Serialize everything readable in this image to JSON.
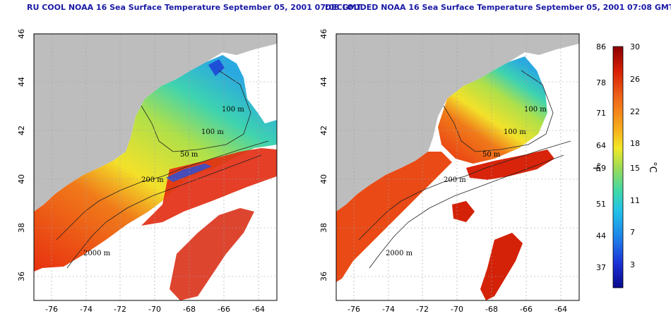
{
  "maps": [
    {
      "id": "left",
      "title": "RU COOL NOAA 16 Sea Surface Temperature September 05, 2001 07:08 GMT",
      "contour_labels": [
        "100 m",
        "100 m",
        "50 m",
        "200 m",
        "2000 m"
      ]
    },
    {
      "id": "right",
      "title": "DECLOUDED NOAA 16 Sea Surface Temperature September 05, 2001 07:08 GMT",
      "contour_labels": [
        "100 m",
        "100 m",
        "50 m",
        "200 m",
        "2000 m"
      ]
    }
  ],
  "axes": {
    "lon_ticks": [
      "-76",
      "-74",
      "-72",
      "-70",
      "-68",
      "-66",
      "-64"
    ],
    "lat_ticks": [
      "46",
      "44",
      "42",
      "40",
      "38",
      "36"
    ],
    "lon_range": [
      -77,
      -63
    ],
    "lat_range": [
      35,
      46
    ]
  },
  "colorbar": {
    "fahrenheit_label": "°F",
    "celsius_label": "°C",
    "fahrenheit_ticks": [
      "86",
      "78",
      "71",
      "64",
      "59",
      "51",
      "44",
      "37"
    ],
    "celsius_ticks": [
      "30",
      "26",
      "22",
      "18",
      "15",
      "11",
      "7",
      "3"
    ],
    "stops": [
      "#8b0000",
      "#d81e05",
      "#f06a1a",
      "#f7b21b",
      "#f2e827",
      "#9fdc55",
      "#3fd8a8",
      "#22c3e8",
      "#1e7de8",
      "#1b2fd6",
      "#0a0a8c"
    ]
  },
  "colors": {
    "land": "#bdbdbd",
    "cloud": "#ffffff",
    "grid": "#a0a0a0"
  }
}
